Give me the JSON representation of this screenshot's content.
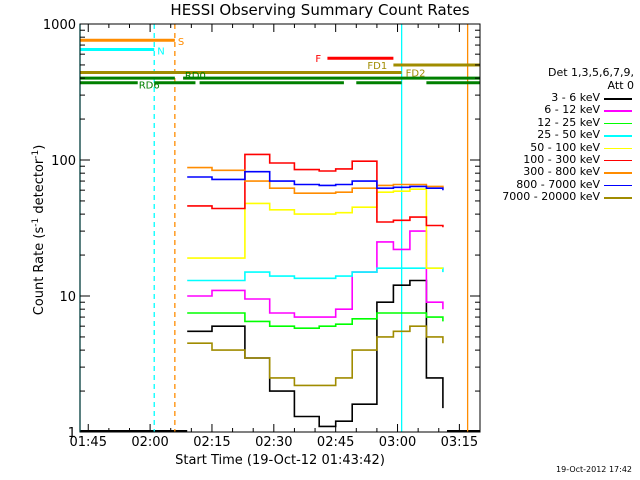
{
  "chart_data": {
    "type": "line",
    "title": "HESSI Observing Summary Count Rates",
    "xlabel": "Start Time (19-Oct-12 01:43:42)",
    "ylabel": "Count Rate (s",
    "ylabel_sup1": "-1",
    "ylabel_mid": " detector",
    "ylabel_sup2": "-1",
    "ylabel_end": ")",
    "yscale": "log",
    "ylim": [
      1,
      1000
    ],
    "xlim_minutes": [
      -2,
      95
    ],
    "x_tick_labels": [
      "01:45",
      "02:00",
      "02:15",
      "02:30",
      "02:45",
      "03:00",
      "03:15"
    ],
    "y_tick_labels": [
      "1",
      "10",
      "100",
      "1000"
    ],
    "footer_date": "19-Oct-2012 17:42",
    "legend": {
      "title_line1": "Det 1,3,5,6,7,9,",
      "title_line2": "Att 0",
      "placement": "right"
    },
    "series": [
      {
        "name": "3 - 6 keV",
        "color": "#000000",
        "values": [
          5.5,
          6,
          3.5,
          2.0,
          1.3,
          1.1,
          1.2,
          1.6,
          9,
          12,
          13,
          2.5,
          1.5
        ]
      },
      {
        "name": "6 - 12 keV",
        "color": "#ff00ff",
        "values": [
          10,
          11,
          9.5,
          7.5,
          7.0,
          7.0,
          8.0,
          15,
          25,
          22,
          30,
          9,
          8
        ]
      },
      {
        "name": "12 - 25 keV",
        "color": "#00ff00",
        "values": [
          7.5,
          7.5,
          6.5,
          6.0,
          5.8,
          6.0,
          6.2,
          6.8,
          7.5,
          7.5,
          7.5,
          7.0,
          6.5
        ]
      },
      {
        "name": "25 - 50 keV",
        "color": "#00ffff",
        "values": [
          13,
          13,
          15,
          14,
          13.5,
          13.5,
          14,
          15,
          16,
          16,
          16,
          16,
          15
        ]
      },
      {
        "name": "50 - 100 keV",
        "color": "#ffff00",
        "values": [
          19,
          19,
          48,
          43,
          40,
          40,
          41,
          45,
          58,
          59,
          61,
          16,
          16
        ]
      },
      {
        "name": "100 - 300 keV",
        "color": "#ff0000",
        "values": [
          46,
          44,
          110,
          95,
          85,
          83,
          86,
          98,
          35,
          36,
          38,
          33,
          32
        ]
      },
      {
        "name": "300 - 800 keV",
        "color": "#ff8c00",
        "values": [
          88,
          84,
          70,
          62,
          57,
          57,
          58,
          62,
          65,
          66,
          66,
          64,
          62
        ]
      },
      {
        "name": "800 - 7000 keV",
        "color": "#0000ff",
        "values": [
          75,
          72,
          82,
          70,
          66,
          65,
          66,
          70,
          62,
          63,
          64,
          62,
          60
        ]
      },
      {
        "name": "7000 - 20000 keV",
        "color": "#a08c00",
        "values": [
          4.5,
          4.0,
          3.5,
          2.5,
          2.2,
          2.2,
          2.5,
          4.0,
          5.0,
          5.5,
          6.0,
          5.0,
          4.5
        ]
      }
    ],
    "series_x_minutes": [
      24,
      30,
      38,
      44,
      50,
      56,
      60,
      64,
      70,
      74,
      78,
      82,
      86
    ],
    "data_gaps_minutes": [
      [
        -2,
        24
      ],
      [
        87,
        95
      ]
    ],
    "flags": [
      {
        "label": "S",
        "color": "#ff8c00",
        "segments": [
          [
            -2,
            21
          ]
        ],
        "value": 760
      },
      {
        "label": "N",
        "color": "#00ffff",
        "segments": [
          [
            -2,
            16
          ]
        ],
        "value": 650
      },
      {
        "label": "F",
        "color": "#ff0000",
        "segments": [
          [
            58,
            74
          ]
        ],
        "value": 560
      },
      {
        "label": "FD1",
        "color": "#a08c00",
        "segments": [
          [
            74,
            95
          ]
        ],
        "value": 500
      },
      {
        "label": "FD2",
        "color": "#a08c00",
        "segments": [
          [
            -2,
            76
          ]
        ],
        "value": 440
      },
      {
        "label": "RD0",
        "color": "#008000",
        "segments": [
          [
            -2,
            21
          ],
          [
            23,
            95
          ]
        ],
        "value": 400
      },
      {
        "label": "RD6",
        "color": "#008000",
        "segments": [
          [
            -2,
            12
          ],
          [
            16,
            26
          ],
          [
            27,
            62
          ],
          [
            65,
            76
          ],
          [
            82,
            95
          ]
        ],
        "value": 370
      }
    ],
    "vertical_markers": [
      {
        "x_minutes": -2,
        "color": "#00ffff",
        "style": "solid"
      },
      {
        "x_minutes": 16,
        "color": "#00ffff",
        "style": "dashed"
      },
      {
        "x_minutes": 21,
        "color": "#ff8c00",
        "style": "dashed"
      },
      {
        "x_minutes": 76,
        "color": "#00ffff",
        "style": "solid"
      },
      {
        "x_minutes": 92,
        "color": "#ff8c00",
        "style": "solid"
      }
    ]
  }
}
